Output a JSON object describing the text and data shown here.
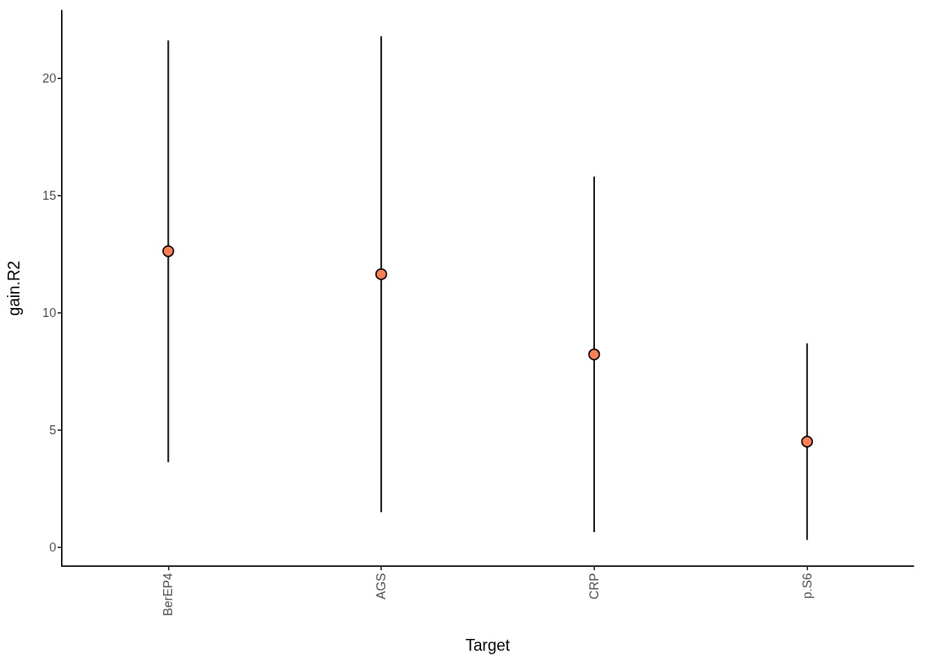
{
  "chart_data": {
    "type": "scatter",
    "xlabel": "Target",
    "ylabel": "gain.R2",
    "categories": [
      "BerEP4",
      "AGS",
      "CRP",
      "p.S6"
    ],
    "values": [
      12.63,
      11.65,
      8.23,
      4.51
    ],
    "errors": [
      [
        3.63,
        21.62
      ],
      [
        1.5,
        21.8
      ],
      [
        0.65,
        15.81
      ],
      [
        0.32,
        8.7
      ]
    ],
    "color": "#ff7f50",
    "marker": "circle",
    "grid": false,
    "ylim": [
      -0.8,
      22.9
    ],
    "yticks": [
      0,
      5,
      10,
      15,
      20
    ]
  }
}
